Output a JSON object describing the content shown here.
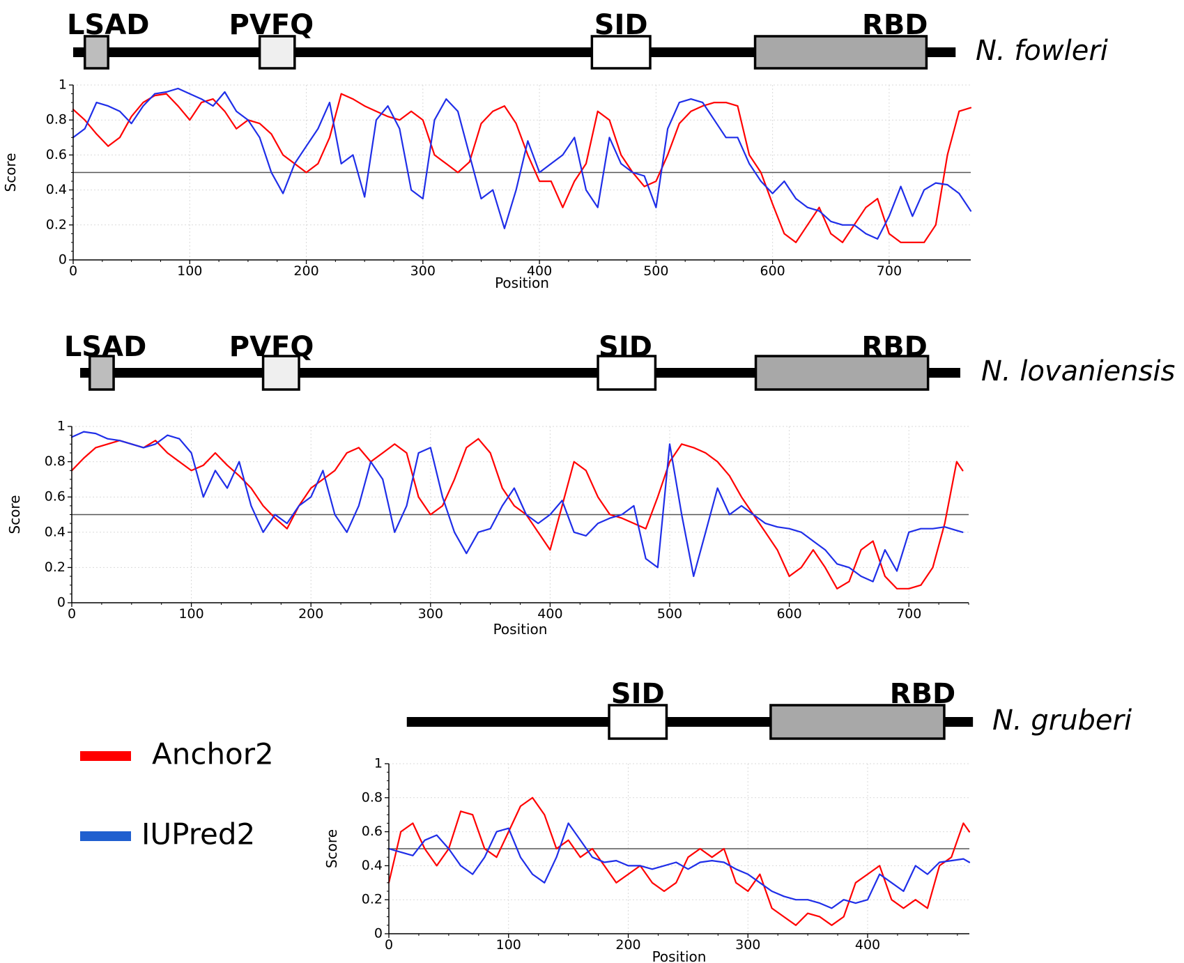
{
  "colors": {
    "anchor": "#ff0000",
    "iupred": "#1f2ee8",
    "threshold": "#555555"
  },
  "legend": [
    {
      "label": "Anchor2",
      "color": "#ff0000"
    },
    {
      "label": "IUPred2",
      "color": "#1f5fcf"
    }
  ],
  "chart_data": [
    {
      "type": "line",
      "species": "N. fowleri",
      "xlabel": "Position",
      "ylabel": "Score",
      "xlim": [
        0,
        770
      ],
      "ylim": [
        0,
        1
      ],
      "xticks": [
        0,
        100,
        200,
        300,
        400,
        500,
        600,
        700
      ],
      "yticks": [
        0,
        0.2,
        0.4,
        0.6,
        0.8,
        1
      ],
      "ytick_labels": [
        "0",
        "0.2",
        "0.4",
        "0.6",
        "0.8",
        "1"
      ],
      "threshold": 0.5,
      "domains": [
        {
          "name": "LSAD",
          "start": 10,
          "end": 30,
          "fill": "#bdbdbd"
        },
        {
          "name": "PVFQ",
          "start": 160,
          "end": 190,
          "fill": "#efefef"
        },
        {
          "name": "SID",
          "start": 445,
          "end": 495,
          "fill": "#ffffff"
        },
        {
          "name": "RBD",
          "start": 585,
          "end": 732,
          "fill": "#a8a8a8"
        }
      ],
      "domain_label_x": {
        "LSAD": 30,
        "PVFQ": 170,
        "SID": 470,
        "RBD": 705
      },
      "backbone": [
        0,
        757
      ],
      "series": [
        {
          "name": "Anchor2",
          "color": "#ff0000",
          "x": [
            0,
            10,
            20,
            30,
            40,
            50,
            60,
            70,
            80,
            90,
            100,
            110,
            120,
            130,
            140,
            150,
            160,
            170,
            180,
            190,
            200,
            210,
            220,
            230,
            240,
            250,
            260,
            270,
            280,
            290,
            300,
            310,
            320,
            330,
            340,
            350,
            360,
            370,
            380,
            390,
            400,
            410,
            420,
            430,
            440,
            450,
            460,
            470,
            480,
            490,
            500,
            510,
            520,
            530,
            540,
            550,
            560,
            570,
            580,
            590,
            600,
            610,
            620,
            630,
            640,
            650,
            660,
            670,
            680,
            690,
            700,
            710,
            720,
            730,
            740,
            750,
            760,
            770
          ],
          "values": [
            0.86,
            0.8,
            0.72,
            0.65,
            0.7,
            0.82,
            0.9,
            0.94,
            0.95,
            0.88,
            0.8,
            0.9,
            0.92,
            0.85,
            0.75,
            0.8,
            0.78,
            0.72,
            0.6,
            0.55,
            0.5,
            0.55,
            0.7,
            0.95,
            0.92,
            0.88,
            0.85,
            0.82,
            0.8,
            0.85,
            0.8,
            0.6,
            0.55,
            0.5,
            0.56,
            0.78,
            0.85,
            0.88,
            0.78,
            0.6,
            0.45,
            0.45,
            0.3,
            0.45,
            0.55,
            0.85,
            0.8,
            0.6,
            0.5,
            0.42,
            0.45,
            0.6,
            0.78,
            0.85,
            0.88,
            0.9,
            0.9,
            0.88,
            0.6,
            0.5,
            0.32,
            0.15,
            0.1,
            0.2,
            0.3,
            0.15,
            0.1,
            0.2,
            0.3,
            0.35,
            0.15,
            0.1,
            0.1,
            0.1,
            0.2,
            0.6,
            0.85,
            0.87
          ]
        },
        {
          "name": "IUPred2",
          "color": "#1f2ee8",
          "x": [
            0,
            10,
            20,
            30,
            40,
            50,
            60,
            70,
            80,
            90,
            100,
            110,
            120,
            130,
            140,
            150,
            160,
            170,
            180,
            190,
            200,
            210,
            220,
            230,
            240,
            250,
            260,
            270,
            280,
            290,
            300,
            310,
            320,
            330,
            340,
            350,
            360,
            370,
            380,
            390,
            400,
            410,
            420,
            430,
            440,
            450,
            460,
            470,
            480,
            490,
            500,
            510,
            520,
            530,
            540,
            550,
            560,
            570,
            580,
            590,
            600,
            610,
            620,
            630,
            640,
            650,
            660,
            670,
            680,
            690,
            700,
            710,
            720,
            730,
            740,
            750,
            760,
            770
          ],
          "values": [
            0.7,
            0.75,
            0.9,
            0.88,
            0.85,
            0.78,
            0.88,
            0.95,
            0.96,
            0.98,
            0.95,
            0.92,
            0.88,
            0.96,
            0.85,
            0.8,
            0.7,
            0.5,
            0.38,
            0.55,
            0.65,
            0.75,
            0.9,
            0.55,
            0.6,
            0.36,
            0.8,
            0.88,
            0.75,
            0.4,
            0.35,
            0.8,
            0.92,
            0.85,
            0.6,
            0.35,
            0.4,
            0.18,
            0.4,
            0.68,
            0.5,
            0.55,
            0.6,
            0.7,
            0.4,
            0.3,
            0.7,
            0.55,
            0.5,
            0.48,
            0.3,
            0.75,
            0.9,
            0.92,
            0.9,
            0.8,
            0.7,
            0.7,
            0.55,
            0.45,
            0.38,
            0.45,
            0.35,
            0.3,
            0.28,
            0.22,
            0.2,
            0.2,
            0.15,
            0.12,
            0.25,
            0.42,
            0.25,
            0.4,
            0.44,
            0.43,
            0.38,
            0.28
          ]
        }
      ]
    },
    {
      "type": "line",
      "species": "N. lovaniensis",
      "xlabel": "Position",
      "ylabel": "Score",
      "xlim": [
        0,
        750
      ],
      "ylim": [
        0,
        1
      ],
      "xticks": [
        0,
        100,
        200,
        300,
        400,
        500,
        600,
        700
      ],
      "yticks": [
        0,
        0.2,
        0.4,
        0.6,
        0.8,
        1
      ],
      "ytick_labels": [
        "0",
        "0.2",
        "0.4",
        "0.6",
        "0.8",
        "1"
      ],
      "threshold": 0.5,
      "domains": [
        {
          "name": "LSAD",
          "start": 15,
          "end": 35,
          "fill": "#bdbdbd"
        },
        {
          "name": "PVFQ",
          "start": 160,
          "end": 190,
          "fill": "#efefef"
        },
        {
          "name": "SID",
          "start": 440,
          "end": 488,
          "fill": "#ffffff"
        },
        {
          "name": "RBD",
          "start": 572,
          "end": 716,
          "fill": "#a8a8a8"
        }
      ],
      "domain_label_x": {
        "LSAD": 28,
        "PVFQ": 167,
        "SID": 463,
        "RBD": 688
      },
      "backbone": [
        7,
        743
      ],
      "series": [
        {
          "name": "Anchor2",
          "color": "#ff0000",
          "x": [
            0,
            10,
            20,
            30,
            40,
            50,
            60,
            70,
            80,
            90,
            100,
            110,
            120,
            130,
            140,
            150,
            160,
            170,
            180,
            190,
            200,
            210,
            220,
            230,
            240,
            250,
            260,
            270,
            280,
            290,
            300,
            310,
            320,
            330,
            340,
            350,
            360,
            370,
            380,
            390,
            400,
            410,
            420,
            430,
            440,
            450,
            460,
            470,
            480,
            490,
            500,
            510,
            520,
            530,
            540,
            550,
            560,
            570,
            580,
            590,
            600,
            610,
            620,
            630,
            640,
            650,
            660,
            670,
            680,
            690,
            700,
            710,
            720,
            730,
            740,
            745
          ],
          "values": [
            0.75,
            0.82,
            0.88,
            0.9,
            0.92,
            0.9,
            0.88,
            0.92,
            0.85,
            0.8,
            0.75,
            0.78,
            0.85,
            0.78,
            0.72,
            0.65,
            0.55,
            0.48,
            0.42,
            0.55,
            0.65,
            0.7,
            0.75,
            0.85,
            0.88,
            0.8,
            0.85,
            0.9,
            0.85,
            0.6,
            0.5,
            0.55,
            0.7,
            0.88,
            0.93,
            0.85,
            0.65,
            0.55,
            0.5,
            0.4,
            0.3,
            0.55,
            0.8,
            0.75,
            0.6,
            0.5,
            0.48,
            0.45,
            0.42,
            0.6,
            0.8,
            0.9,
            0.88,
            0.85,
            0.8,
            0.72,
            0.6,
            0.5,
            0.4,
            0.3,
            0.15,
            0.2,
            0.3,
            0.2,
            0.08,
            0.12,
            0.3,
            0.35,
            0.15,
            0.08,
            0.08,
            0.1,
            0.2,
            0.45,
            0.8,
            0.75
          ]
        },
        {
          "name": "IUPred2",
          "color": "#1f2ee8",
          "x": [
            0,
            10,
            20,
            30,
            40,
            50,
            60,
            70,
            80,
            90,
            100,
            110,
            120,
            130,
            140,
            150,
            160,
            170,
            180,
            190,
            200,
            210,
            220,
            230,
            240,
            250,
            260,
            270,
            280,
            290,
            300,
            310,
            320,
            330,
            340,
            350,
            360,
            370,
            380,
            390,
            400,
            410,
            420,
            430,
            440,
            450,
            460,
            470,
            480,
            490,
            500,
            510,
            520,
            530,
            540,
            550,
            560,
            570,
            580,
            590,
            600,
            610,
            620,
            630,
            640,
            650,
            660,
            670,
            680,
            690,
            700,
            710,
            720,
            730,
            740,
            745
          ],
          "values": [
            0.94,
            0.97,
            0.96,
            0.93,
            0.92,
            0.9,
            0.88,
            0.9,
            0.95,
            0.93,
            0.85,
            0.6,
            0.75,
            0.65,
            0.8,
            0.55,
            0.4,
            0.5,
            0.45,
            0.55,
            0.6,
            0.75,
            0.5,
            0.4,
            0.55,
            0.8,
            0.7,
            0.4,
            0.55,
            0.85,
            0.88,
            0.6,
            0.4,
            0.28,
            0.4,
            0.42,
            0.55,
            0.65,
            0.5,
            0.45,
            0.5,
            0.58,
            0.4,
            0.38,
            0.45,
            0.48,
            0.5,
            0.55,
            0.25,
            0.2,
            0.9,
            0.5,
            0.15,
            0.4,
            0.65,
            0.5,
            0.55,
            0.5,
            0.45,
            0.43,
            0.42,
            0.4,
            0.35,
            0.3,
            0.22,
            0.2,
            0.15,
            0.12,
            0.3,
            0.18,
            0.4,
            0.42,
            0.42,
            0.43,
            0.41,
            0.4
          ]
        }
      ]
    },
    {
      "type": "line",
      "species": "N. gruberi",
      "xlabel": "Position",
      "ylabel": "Score",
      "xlim": [
        0,
        485
      ],
      "ylim": [
        0,
        1
      ],
      "xticks": [
        0,
        100,
        200,
        300,
        400
      ],
      "yticks": [
        0,
        0.2,
        0.4,
        0.6,
        0.8,
        1
      ],
      "ytick_labels": [
        "0",
        "0.2",
        "0.4",
        "0.6",
        "0.8",
        "1"
      ],
      "threshold": 0.5,
      "domains": [
        {
          "name": "SID",
          "start": 184,
          "end": 232,
          "fill": "#ffffff"
        },
        {
          "name": "RBD",
          "start": 319,
          "end": 464,
          "fill": "#a8a8a8"
        }
      ],
      "domain_label_x": {
        "SID": 208,
        "RBD": 446
      },
      "backbone": [
        15,
        488
      ],
      "series": [
        {
          "name": "Anchor2",
          "color": "#ff0000",
          "x": [
            0,
            10,
            20,
            30,
            40,
            50,
            60,
            70,
            80,
            90,
            100,
            110,
            120,
            130,
            140,
            150,
            160,
            170,
            180,
            190,
            200,
            210,
            220,
            230,
            240,
            250,
            260,
            270,
            280,
            290,
            300,
            310,
            320,
            330,
            340,
            350,
            360,
            370,
            380,
            390,
            400,
            410,
            420,
            430,
            440,
            450,
            460,
            470,
            480,
            485
          ],
          "values": [
            0.3,
            0.6,
            0.65,
            0.5,
            0.4,
            0.5,
            0.72,
            0.7,
            0.5,
            0.45,
            0.6,
            0.75,
            0.8,
            0.7,
            0.5,
            0.55,
            0.45,
            0.5,
            0.4,
            0.3,
            0.35,
            0.4,
            0.3,
            0.25,
            0.3,
            0.45,
            0.5,
            0.45,
            0.5,
            0.3,
            0.25,
            0.35,
            0.15,
            0.1,
            0.05,
            0.12,
            0.1,
            0.05,
            0.1,
            0.3,
            0.35,
            0.4,
            0.2,
            0.15,
            0.2,
            0.15,
            0.4,
            0.45,
            0.65,
            0.6
          ]
        },
        {
          "name": "IUPred2",
          "color": "#1f2ee8",
          "x": [
            0,
            10,
            20,
            30,
            40,
            50,
            60,
            70,
            80,
            90,
            100,
            110,
            120,
            130,
            140,
            150,
            160,
            170,
            180,
            190,
            200,
            210,
            220,
            230,
            240,
            250,
            260,
            270,
            280,
            290,
            300,
            310,
            320,
            330,
            340,
            350,
            360,
            370,
            380,
            390,
            400,
            410,
            420,
            430,
            440,
            450,
            460,
            470,
            480,
            485
          ],
          "values": [
            0.5,
            0.48,
            0.46,
            0.55,
            0.58,
            0.5,
            0.4,
            0.35,
            0.45,
            0.6,
            0.62,
            0.45,
            0.35,
            0.3,
            0.45,
            0.65,
            0.55,
            0.45,
            0.42,
            0.43,
            0.4,
            0.4,
            0.38,
            0.4,
            0.42,
            0.38,
            0.42,
            0.43,
            0.42,
            0.38,
            0.35,
            0.3,
            0.25,
            0.22,
            0.2,
            0.2,
            0.18,
            0.15,
            0.2,
            0.18,
            0.2,
            0.35,
            0.3,
            0.25,
            0.4,
            0.35,
            0.42,
            0.43,
            0.44,
            0.42
          ]
        }
      ]
    }
  ]
}
